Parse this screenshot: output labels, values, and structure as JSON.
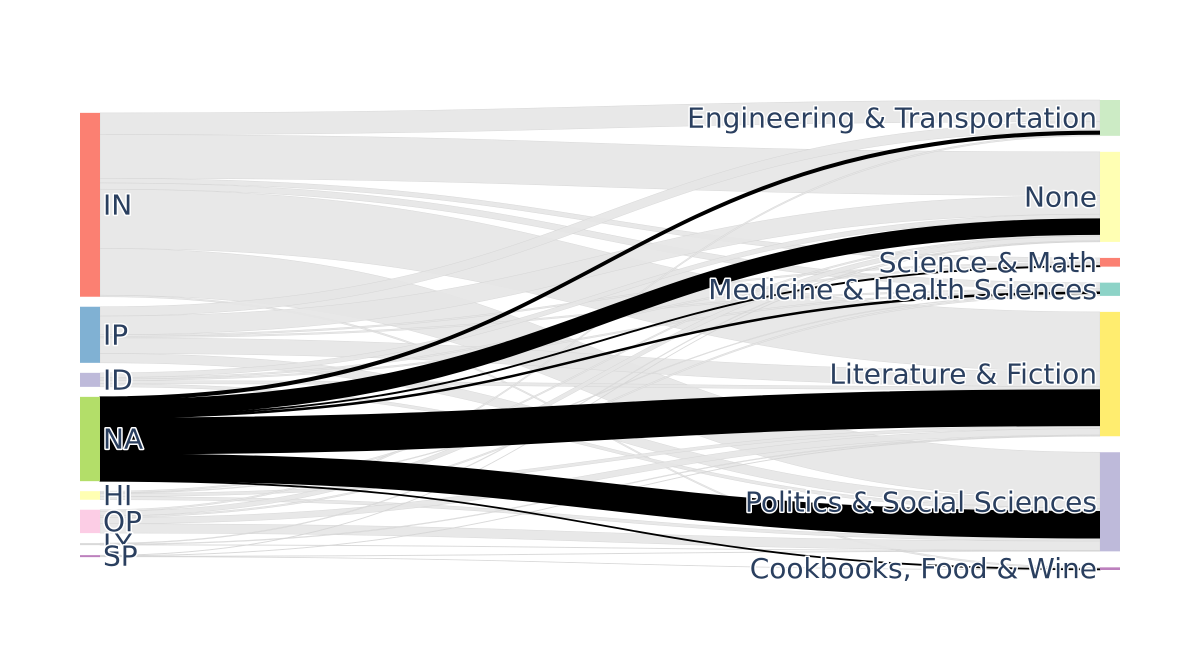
{
  "chart_data": {
    "type": "sankey",
    "title": "",
    "colors": {
      "link_default": "#e6e6e6",
      "link_highlight": "#000000",
      "label": "#2a3f5f"
    },
    "highlight_source": "NA",
    "source_nodes": [
      {
        "id": "IN",
        "label": "IN",
        "color": "#fb8072"
      },
      {
        "id": "IP",
        "label": "IP",
        "color": "#80b1d3"
      },
      {
        "id": "ID",
        "label": "ID",
        "color": "#bebada"
      },
      {
        "id": "NA",
        "label": "NA",
        "color": "#b3de69"
      },
      {
        "id": "HI",
        "label": "HI",
        "color": "#ffffb3"
      },
      {
        "id": "OP",
        "label": "OP",
        "color": "#fccde5"
      },
      {
        "id": "LY",
        "label": "LY",
        "color": "#d9d9d9"
      },
      {
        "id": "SP",
        "label": "SP",
        "color": "#bc80bd"
      }
    ],
    "target_nodes": [
      {
        "id": "ENG",
        "label": "Engineering & Transportation",
        "color": "#ccebc5"
      },
      {
        "id": "NONE",
        "label": "None",
        "color": "#ffffb3"
      },
      {
        "id": "SCI",
        "label": "Science & Math",
        "color": "#fb8072"
      },
      {
        "id": "MED",
        "label": "Medicine & Health Sciences",
        "color": "#8dd3c7"
      },
      {
        "id": "LIT",
        "label": "Literature & Fiction",
        "color": "#ffed6f"
      },
      {
        "id": "POL",
        "label": "Politics & Social Sciences",
        "color": "#bebada"
      },
      {
        "id": "COOK",
        "label": "Cookbooks, Food & Wine",
        "color": "#bc80bd"
      }
    ],
    "links": [
      {
        "source": "IN",
        "target": "ENG",
        "value": 14
      },
      {
        "source": "IN",
        "target": "NONE",
        "value": 28
      },
      {
        "source": "IN",
        "target": "SCI",
        "value": 3
      },
      {
        "source": "IN",
        "target": "MED",
        "value": 4
      },
      {
        "source": "IN",
        "target": "LIT",
        "value": 38
      },
      {
        "source": "IN",
        "target": "POL",
        "value": 30
      },
      {
        "source": "IN",
        "target": "COOK",
        "value": 1
      },
      {
        "source": "IP",
        "target": "ENG",
        "value": 6
      },
      {
        "source": "IP",
        "target": "NONE",
        "value": 12
      },
      {
        "source": "IP",
        "target": "SCI",
        "value": 1
      },
      {
        "source": "IP",
        "target": "MED",
        "value": 1
      },
      {
        "source": "IP",
        "target": "LIT",
        "value": 10
      },
      {
        "source": "IP",
        "target": "POL",
        "value": 6
      },
      {
        "source": "ID",
        "target": "NONE",
        "value": 3
      },
      {
        "source": "ID",
        "target": "SCI",
        "value": 1
      },
      {
        "source": "ID",
        "target": "MED",
        "value": 1
      },
      {
        "source": "ID",
        "target": "LIT",
        "value": 2
      },
      {
        "source": "ID",
        "target": "POL",
        "value": 2
      },
      {
        "source": "NA",
        "target": "ENG",
        "value": 2
      },
      {
        "source": "NA",
        "target": "NONE",
        "value": 10
      },
      {
        "source": "NA",
        "target": "SCI",
        "value": 0.6
      },
      {
        "source": "NA",
        "target": "MED",
        "value": 1
      },
      {
        "source": "NA",
        "target": "LIT",
        "value": 23
      },
      {
        "source": "NA",
        "target": "POL",
        "value": 17
      },
      {
        "source": "NA",
        "target": "COOK",
        "value": 0.5
      },
      {
        "source": "HI",
        "target": "NONE",
        "value": 1
      },
      {
        "source": "HI",
        "target": "MED",
        "value": 0.5
      },
      {
        "source": "HI",
        "target": "LIT",
        "value": 2
      },
      {
        "source": "HI",
        "target": "POL",
        "value": 2
      },
      {
        "source": "OP",
        "target": "ENG",
        "value": 1
      },
      {
        "source": "OP",
        "target": "NONE",
        "value": 3
      },
      {
        "source": "OP",
        "target": "MED",
        "value": 1
      },
      {
        "source": "OP",
        "target": "LIT",
        "value": 4
      },
      {
        "source": "OP",
        "target": "POL",
        "value": 6
      },
      {
        "source": "LY",
        "target": "NONE",
        "value": 0.5
      },
      {
        "source": "LY",
        "target": "LIT",
        "value": 0.5
      },
      {
        "source": "LY",
        "target": "POL",
        "value": 0.3
      },
      {
        "source": "SP",
        "target": "NONE",
        "value": 0.3
      },
      {
        "source": "SP",
        "target": "LIT",
        "value": 0.3
      },
      {
        "source": "SP",
        "target": "POL",
        "value": 0.3
      },
      {
        "source": "SP",
        "target": "COOK",
        "value": 0.2
      }
    ]
  }
}
